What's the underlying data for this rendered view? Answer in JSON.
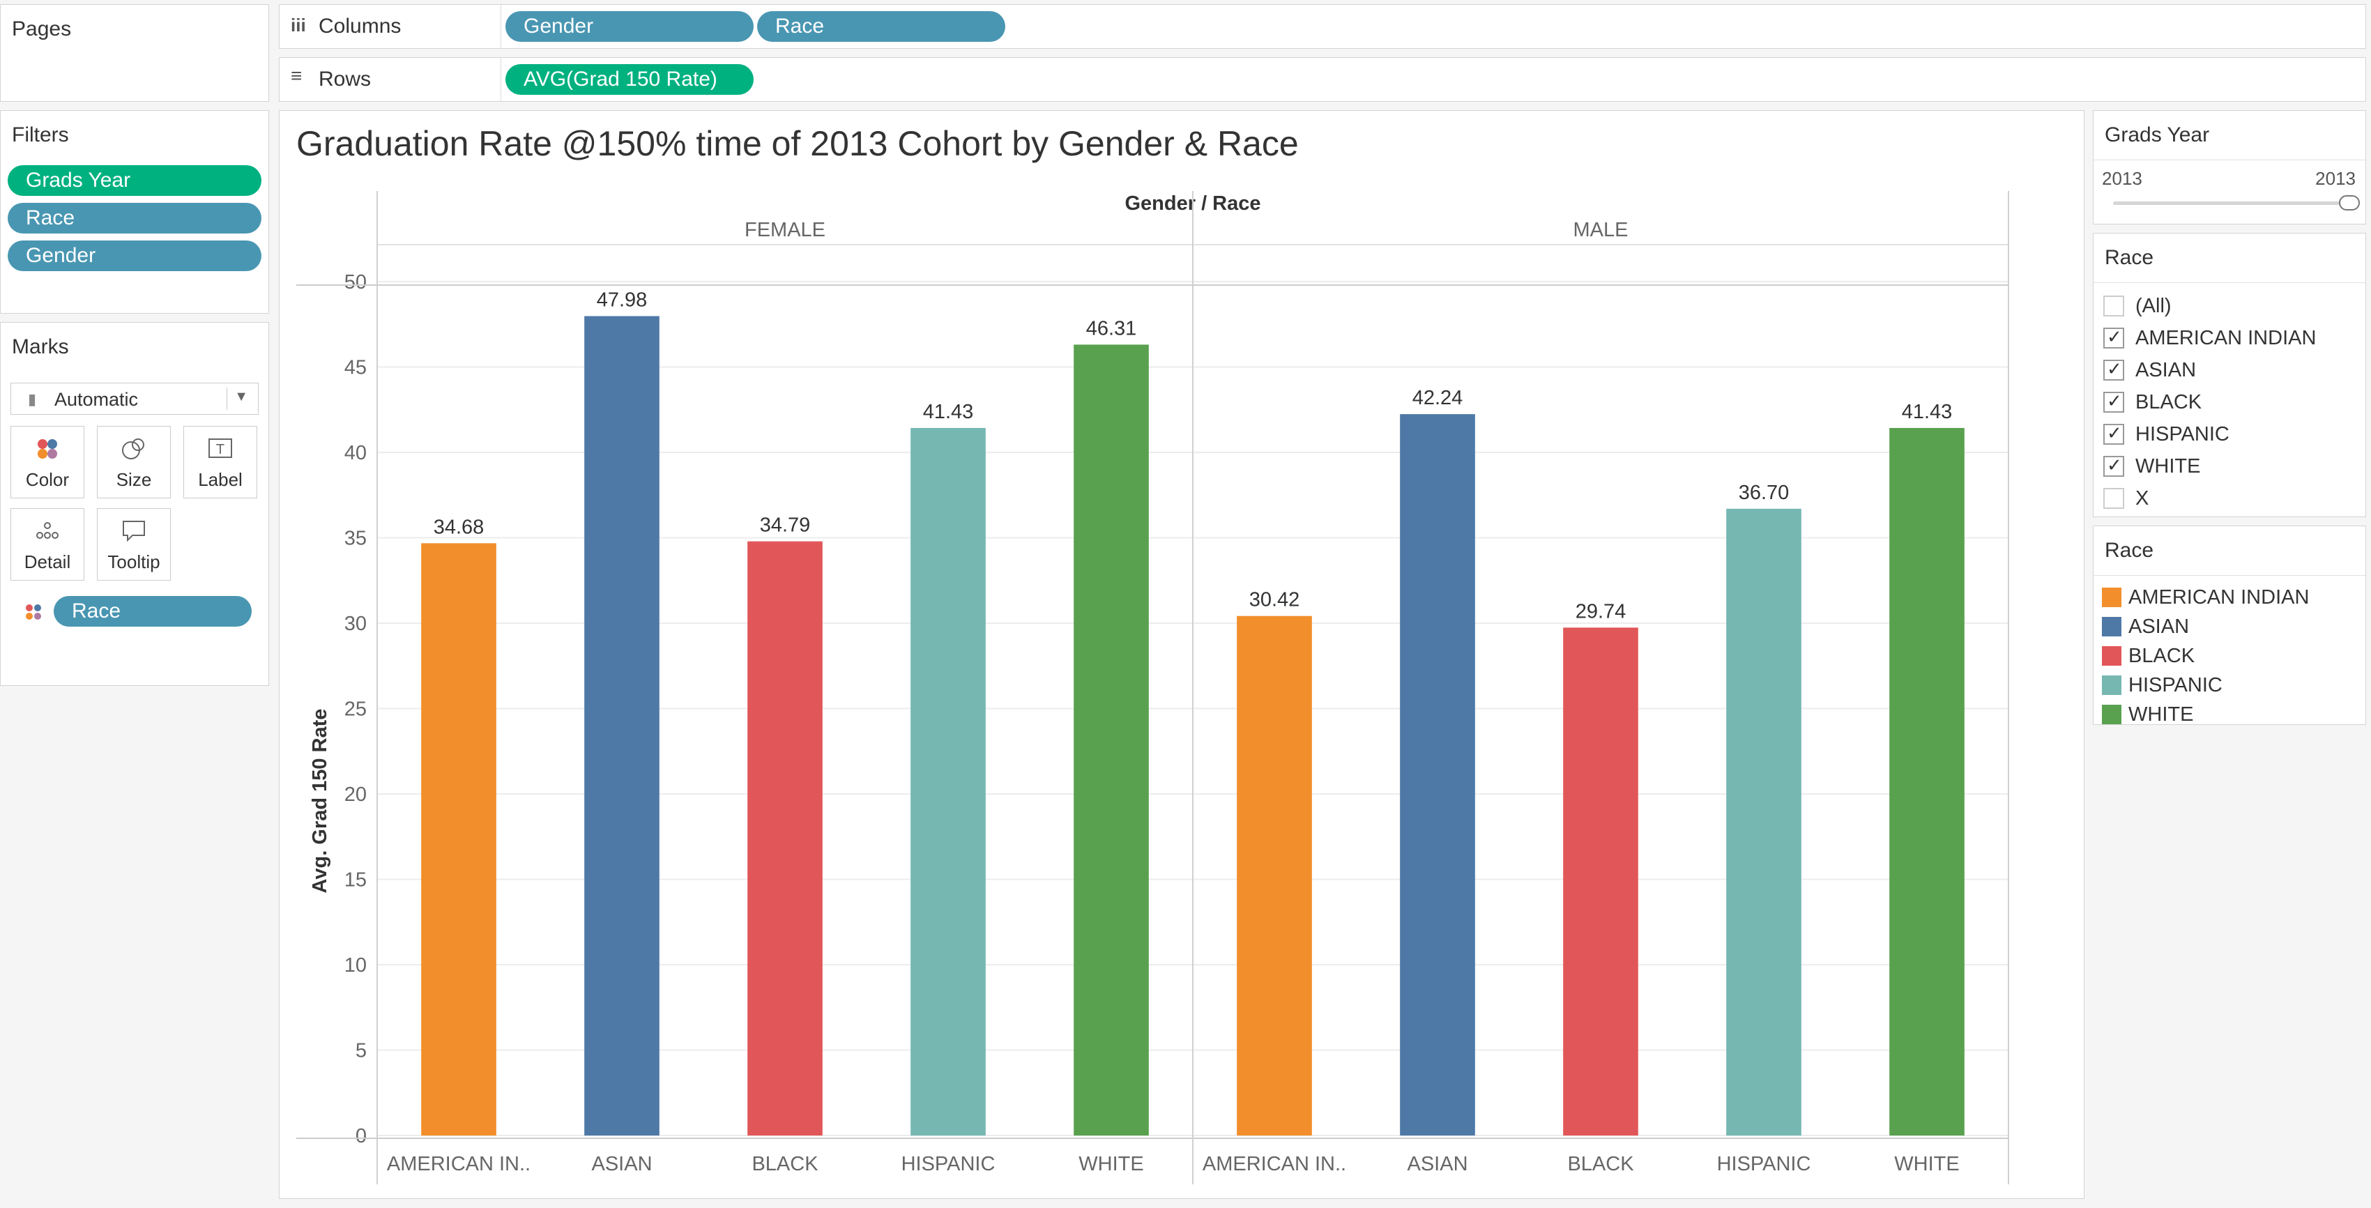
{
  "pages": {
    "title": "Pages"
  },
  "columns": {
    "label": "Columns",
    "pills": [
      "Gender",
      "Race"
    ]
  },
  "rows": {
    "label": "Rows",
    "pills": [
      "AVG(Grad 150 Rate)"
    ]
  },
  "filters": {
    "title": "Filters",
    "pills": [
      "Grads Year",
      "Race",
      "Gender"
    ]
  },
  "marks": {
    "title": "Marks",
    "type": "Automatic",
    "buttons": [
      "Color",
      "Size",
      "Label",
      "Detail",
      "Tooltip"
    ],
    "color_pill": "Race"
  },
  "grads_year": {
    "title": "Grads Year",
    "min": "2013",
    "max": "2013"
  },
  "race_filter": {
    "title": "Race",
    "items": [
      {
        "label": "(All)",
        "checked": false
      },
      {
        "label": "AMERICAN INDIAN",
        "checked": true
      },
      {
        "label": "ASIAN",
        "checked": true
      },
      {
        "label": "BLACK",
        "checked": true
      },
      {
        "label": "HISPANIC",
        "checked": true
      },
      {
        "label": "WHITE",
        "checked": true
      },
      {
        "label": "X",
        "checked": false
      }
    ]
  },
  "legend": {
    "title": "Race",
    "items": [
      {
        "label": "AMERICAN INDIAN",
        "color": "#f28e2b"
      },
      {
        "label": "ASIAN",
        "color": "#4e79a7"
      },
      {
        "label": "BLACK",
        "color": "#e15759"
      },
      {
        "label": "HISPANIC",
        "color": "#76b7b2"
      },
      {
        "label": "WHITE",
        "color": "#59a14f"
      }
    ]
  },
  "chart_data": {
    "type": "bar",
    "title": "Graduation Rate @150% time of 2013 Cohort by Gender & Race",
    "header": "Gender / Race",
    "ylabel": "Avg. Grad 150 Rate",
    "ylim": [
      0,
      50
    ],
    "yticks": [
      0,
      5,
      10,
      15,
      20,
      25,
      30,
      35,
      40,
      45,
      50
    ],
    "groups": [
      {
        "name": "FEMALE",
        "categories": [
          "AMERICAN IN..",
          "ASIAN",
          "BLACK",
          "HISPANIC",
          "WHITE"
        ],
        "values": [
          34.68,
          47.98,
          34.79,
          41.43,
          46.31
        ],
        "labels": [
          "34.68",
          "47.98",
          "34.79",
          "41.43",
          "46.31"
        ]
      },
      {
        "name": "MALE",
        "categories": [
          "AMERICAN IN..",
          "ASIAN",
          "BLACK",
          "HISPANIC",
          "WHITE"
        ],
        "values": [
          30.42,
          42.24,
          29.74,
          36.7,
          41.43
        ],
        "labels": [
          "30.42",
          "42.24",
          "29.74",
          "36.70",
          "41.43"
        ]
      }
    ],
    "colors": [
      "#f28e2b",
      "#4e79a7",
      "#e15759",
      "#76b7b2",
      "#59a14f"
    ],
    "grid": true
  }
}
